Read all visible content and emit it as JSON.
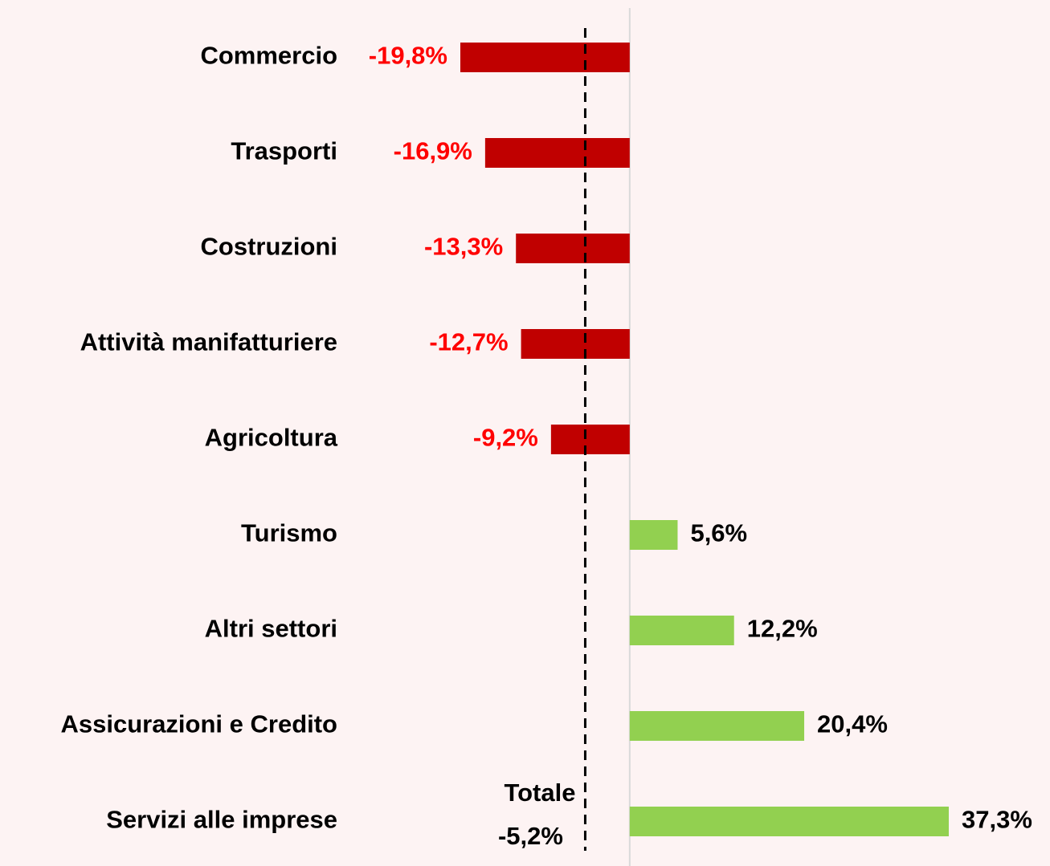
{
  "chart_data": {
    "type": "bar",
    "orientation": "horizontal",
    "categories": [
      "Commercio",
      "Trasporti",
      "Costruzioni",
      "Attività manifatturiere",
      "Agricoltura",
      "Turismo",
      "Altri settori",
      "Assicurazioni e Credito",
      "Servizi alle imprese"
    ],
    "values": [
      -19.8,
      -16.9,
      -13.3,
      -12.7,
      -9.2,
      5.6,
      12.2,
      20.4,
      37.3
    ],
    "value_labels": [
      "-19,8%",
      "-16,9%",
      "-13,3%",
      "-12,7%",
      "-9,2%",
      "5,6%",
      "12,2%",
      "20,4%",
      "37,3%"
    ],
    "negative_color": "#c00000",
    "positive_color": "#92d050",
    "negative_label_color": "#ff0000",
    "positive_label_color": "#000000",
    "reference": {
      "label": "Totale",
      "value": -5.2,
      "value_label": "-5,2%"
    }
  }
}
